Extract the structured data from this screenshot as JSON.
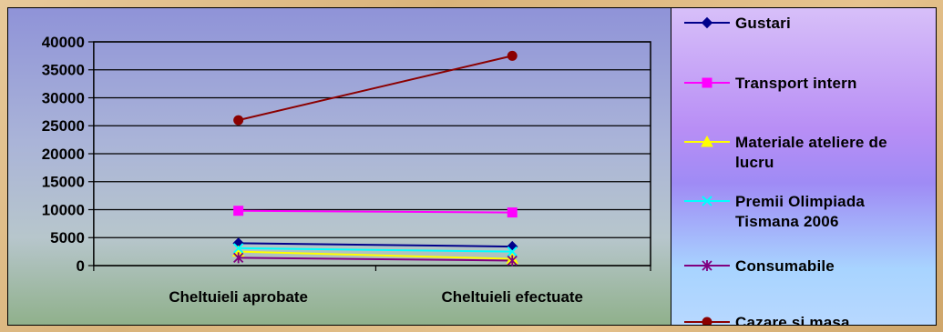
{
  "chart_data": {
    "type": "line",
    "categories": [
      "Cheltuieli aprobate",
      "Cheltuieli efectuate"
    ],
    "y_ticks": [
      "0",
      "5000",
      "10000",
      "15000",
      "20000",
      "25000",
      "30000",
      "35000",
      "40000"
    ],
    "ylim": [
      0,
      40000
    ],
    "grid": true,
    "legend_position": "right",
    "series": [
      {
        "legend_lines": [
          "Gustari"
        ],
        "values": [
          4000,
          3400
        ],
        "color": "#00008b",
        "marker": "diamond"
      },
      {
        "legend_lines": [
          "Transport intern"
        ],
        "values": [
          9800,
          9500
        ],
        "color": "#ff00ff",
        "marker": "square"
      },
      {
        "legend_lines": [
          "Materiale ateliere de",
          "lucru"
        ],
        "values": [
          2500,
          1200
        ],
        "color": "#ffff00",
        "marker": "triangle"
      },
      {
        "legend_lines": [
          "Premii Olimpiada",
          "Tismana 2006"
        ],
        "values": [
          3100,
          2500
        ],
        "color": "#00ffff",
        "marker": "x"
      },
      {
        "legend_lines": [
          "Consumabile"
        ],
        "values": [
          1400,
          900
        ],
        "color": "#800080",
        "marker": "star"
      },
      {
        "legend_lines": [
          "Cazare si masa"
        ],
        "values": [
          26000,
          37500
        ],
        "color": "#8b0000",
        "marker": "circle"
      }
    ]
  }
}
